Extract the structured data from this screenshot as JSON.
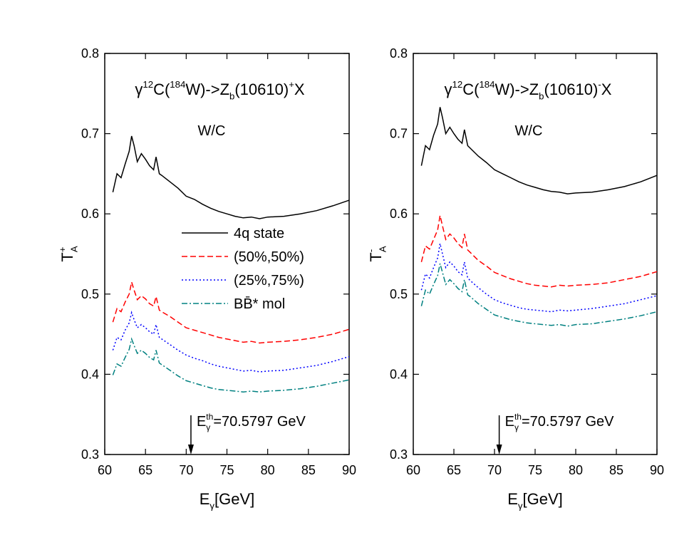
{
  "chart_data": [
    {
      "type": "line",
      "title": [
        "γ",
        "12",
        "C(",
        "184",
        "W)->Z",
        "b",
        "(10610)",
        "+",
        "X"
      ],
      "annotation": "W/C",
      "threshold": {
        "x": 70.5797,
        "label": [
          "E",
          "th",
          "γ",
          "=70.5797 GeV"
        ]
      },
      "xlabel": [
        "E",
        "γ",
        " [GeV]"
      ],
      "ylabel": [
        "T",
        "+",
        "A"
      ],
      "xlim": [
        60,
        90
      ],
      "xticks": [
        60,
        65,
        70,
        75,
        80,
        85,
        90
      ],
      "ylim": [
        0.3,
        0.8
      ],
      "yticks": [
        0.3,
        0.4,
        0.5,
        0.6,
        0.7,
        0.8
      ],
      "legend": "center",
      "x": [
        61,
        61.5,
        62,
        62.5,
        63,
        63.3,
        63.6,
        64,
        64.5,
        65,
        65.5,
        66,
        66.3,
        66.7,
        67,
        68,
        69,
        70,
        71,
        72,
        73,
        74,
        75,
        76,
        77,
        78,
        79,
        80,
        82,
        84,
        86,
        88,
        90
      ],
      "series": [
        {
          "name": "4q state",
          "color": "#000000",
          "values": [
            0.627,
            0.65,
            0.645,
            0.662,
            0.678,
            0.697,
            0.685,
            0.665,
            0.675,
            0.668,
            0.66,
            0.655,
            0.671,
            0.65,
            0.648,
            0.64,
            0.632,
            0.622,
            0.618,
            0.612,
            0.607,
            0.603,
            0.6,
            0.597,
            0.595,
            0.596,
            0.594,
            0.596,
            0.597,
            0.6,
            0.604,
            0.61,
            0.617
          ]
        },
        {
          "name": "(50%,50%)",
          "color": "#ff0000",
          "values": [
            0.465,
            0.482,
            0.478,
            0.49,
            0.5,
            0.515,
            0.505,
            0.493,
            0.498,
            0.494,
            0.488,
            0.485,
            0.497,
            0.48,
            0.478,
            0.472,
            0.465,
            0.458,
            0.455,
            0.452,
            0.449,
            0.446,
            0.444,
            0.442,
            0.44,
            0.441,
            0.439,
            0.44,
            0.441,
            0.443,
            0.446,
            0.45,
            0.456
          ]
        },
        {
          "name": "(25%,75%)",
          "color": "#0000ff",
          "values": [
            0.43,
            0.446,
            0.443,
            0.455,
            0.464,
            0.477,
            0.468,
            0.458,
            0.462,
            0.458,
            0.453,
            0.45,
            0.462,
            0.446,
            0.444,
            0.437,
            0.43,
            0.424,
            0.42,
            0.417,
            0.413,
            0.41,
            0.408,
            0.406,
            0.404,
            0.405,
            0.403,
            0.404,
            0.405,
            0.408,
            0.411,
            0.416,
            0.422
          ]
        },
        {
          "name": "BB̄* mol",
          "color": "#008080",
          "values": [
            0.399,
            0.413,
            0.41,
            0.421,
            0.431,
            0.444,
            0.436,
            0.426,
            0.43,
            0.426,
            0.421,
            0.418,
            0.43,
            0.414,
            0.412,
            0.405,
            0.398,
            0.392,
            0.389,
            0.386,
            0.383,
            0.381,
            0.38,
            0.379,
            0.378,
            0.379,
            0.378,
            0.379,
            0.38,
            0.382,
            0.385,
            0.389,
            0.393
          ]
        }
      ]
    },
    {
      "type": "line",
      "title": [
        "γ",
        "12",
        "C(",
        "184",
        "W)->Z",
        "b",
        "(10610)",
        "-",
        "X"
      ],
      "annotation": "W/C",
      "threshold": {
        "x": 70.5797,
        "label": [
          "E",
          "th",
          "γ",
          "=70.5797 GeV"
        ]
      },
      "xlabel": [
        "E",
        "γ",
        " [GeV]"
      ],
      "ylabel": [
        "T",
        "-",
        "A"
      ],
      "xlim": [
        60,
        90
      ],
      "xticks": [
        60,
        65,
        70,
        75,
        80,
        85,
        90
      ],
      "ylim": [
        0.3,
        0.8
      ],
      "yticks": [
        0.3,
        0.4,
        0.5,
        0.6,
        0.7,
        0.8
      ],
      "x": [
        61,
        61.5,
        62,
        62.5,
        63,
        63.3,
        63.6,
        64,
        64.5,
        65,
        65.5,
        66,
        66.3,
        66.7,
        67,
        68,
        69,
        70,
        71,
        72,
        73,
        74,
        75,
        76,
        77,
        78,
        79,
        80,
        82,
        84,
        86,
        88,
        90
      ],
      "series": [
        {
          "color": "#000000",
          "values": [
            0.66,
            0.685,
            0.68,
            0.698,
            0.712,
            0.733,
            0.72,
            0.7,
            0.708,
            0.7,
            0.693,
            0.688,
            0.705,
            0.685,
            0.682,
            0.672,
            0.664,
            0.655,
            0.65,
            0.645,
            0.64,
            0.636,
            0.633,
            0.63,
            0.628,
            0.627,
            0.625,
            0.626,
            0.627,
            0.63,
            0.634,
            0.64,
            0.648
          ]
        },
        {
          "color": "#ff0000",
          "values": [
            0.54,
            0.56,
            0.556,
            0.568,
            0.58,
            0.598,
            0.585,
            0.568,
            0.575,
            0.57,
            0.563,
            0.558,
            0.575,
            0.555,
            0.552,
            0.542,
            0.535,
            0.527,
            0.523,
            0.519,
            0.516,
            0.513,
            0.511,
            0.51,
            0.509,
            0.511,
            0.51,
            0.511,
            0.512,
            0.514,
            0.518,
            0.522,
            0.528
          ]
        },
        {
          "color": "#0000ff",
          "values": [
            0.505,
            0.525,
            0.52,
            0.533,
            0.545,
            0.563,
            0.55,
            0.533,
            0.54,
            0.535,
            0.528,
            0.524,
            0.54,
            0.52,
            0.517,
            0.508,
            0.5,
            0.493,
            0.489,
            0.486,
            0.483,
            0.481,
            0.48,
            0.479,
            0.478,
            0.48,
            0.479,
            0.48,
            0.482,
            0.485,
            0.488,
            0.493,
            0.498
          ]
        },
        {
          "color": "#008080",
          "values": [
            0.485,
            0.505,
            0.5,
            0.512,
            0.523,
            0.538,
            0.527,
            0.512,
            0.518,
            0.513,
            0.507,
            0.503,
            0.518,
            0.499,
            0.497,
            0.488,
            0.481,
            0.474,
            0.471,
            0.468,
            0.466,
            0.464,
            0.463,
            0.462,
            0.461,
            0.462,
            0.46,
            0.462,
            0.463,
            0.466,
            0.469,
            0.473,
            0.478
          ]
        }
      ]
    }
  ]
}
